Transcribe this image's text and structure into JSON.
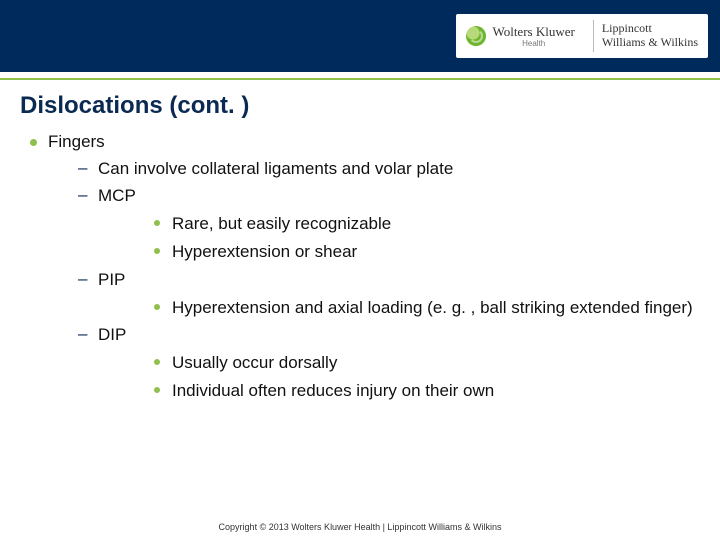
{
  "colors": {
    "header_bg": "#002a5c",
    "accent_green": "#8fbf4d",
    "title_color": "#0a2a52",
    "text_color": "#111111",
    "background": "#ffffff"
  },
  "typography": {
    "title_fontsize_pt": 18,
    "body_fontsize_pt": 13,
    "footer_fontsize_pt": 7,
    "font_family": "Verdana"
  },
  "header": {
    "brand_primary": "Wolters Kluwer",
    "brand_primary_sub": "Health",
    "brand_secondary_line1": "Lippincott",
    "brand_secondary_line2": "Williams & Wilkins"
  },
  "title": "Dislocations (cont. )",
  "bullets": {
    "l1_0": "Fingers",
    "l2_0": "Can involve collateral ligaments and volar plate",
    "l2_1": "MCP",
    "l3_0": "Rare, but easily recognizable",
    "l3_1": "Hyperextension or shear",
    "l2_2": "PIP",
    "l3_2": "Hyperextension and axial loading (e. g. , ball striking extended finger)",
    "l2_3": "DIP",
    "l3_3": "Usually occur dorsally",
    "l3_4": "Individual often reduces injury on their own"
  },
  "footer": "Copyright © 2013 Wolters Kluwer Health | Lippincott Williams & Wilkins"
}
